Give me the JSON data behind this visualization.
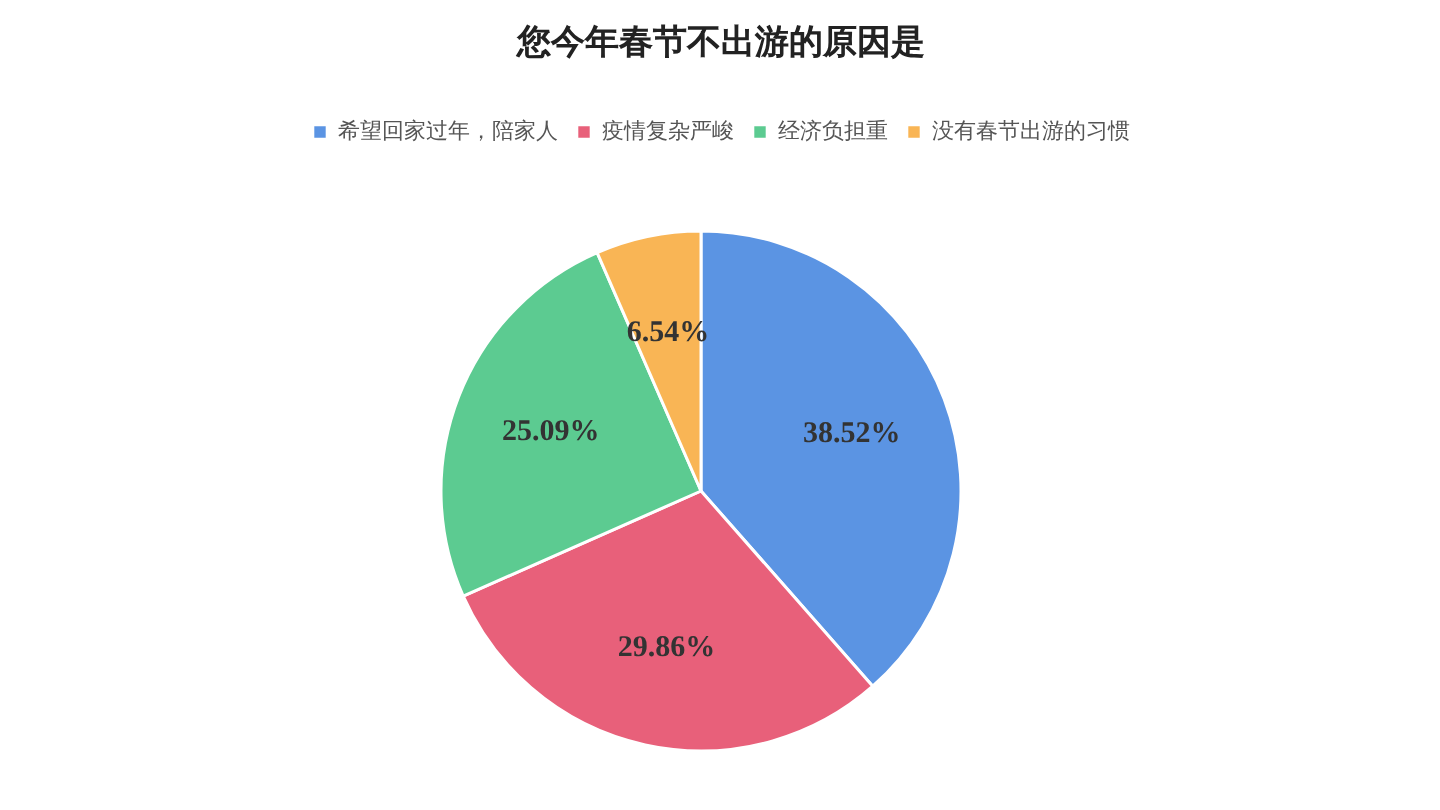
{
  "chart_data": {
    "type": "pie",
    "title": "您今年春节不出游的原因是",
    "categories": [
      "希望回家过年，陪家人",
      "疫情复杂严峻",
      "经济负担重",
      "没有春节出游的习惯"
    ],
    "values": [
      38.52,
      29.86,
      25.09,
      6.54
    ],
    "colors": [
      "#5b94e3",
      "#e8607a",
      "#5ccb91",
      "#f9b555"
    ],
    "value_labels": [
      "38.52%",
      "29.86%",
      "25.09%",
      "6.54%"
    ],
    "legend": "top"
  }
}
